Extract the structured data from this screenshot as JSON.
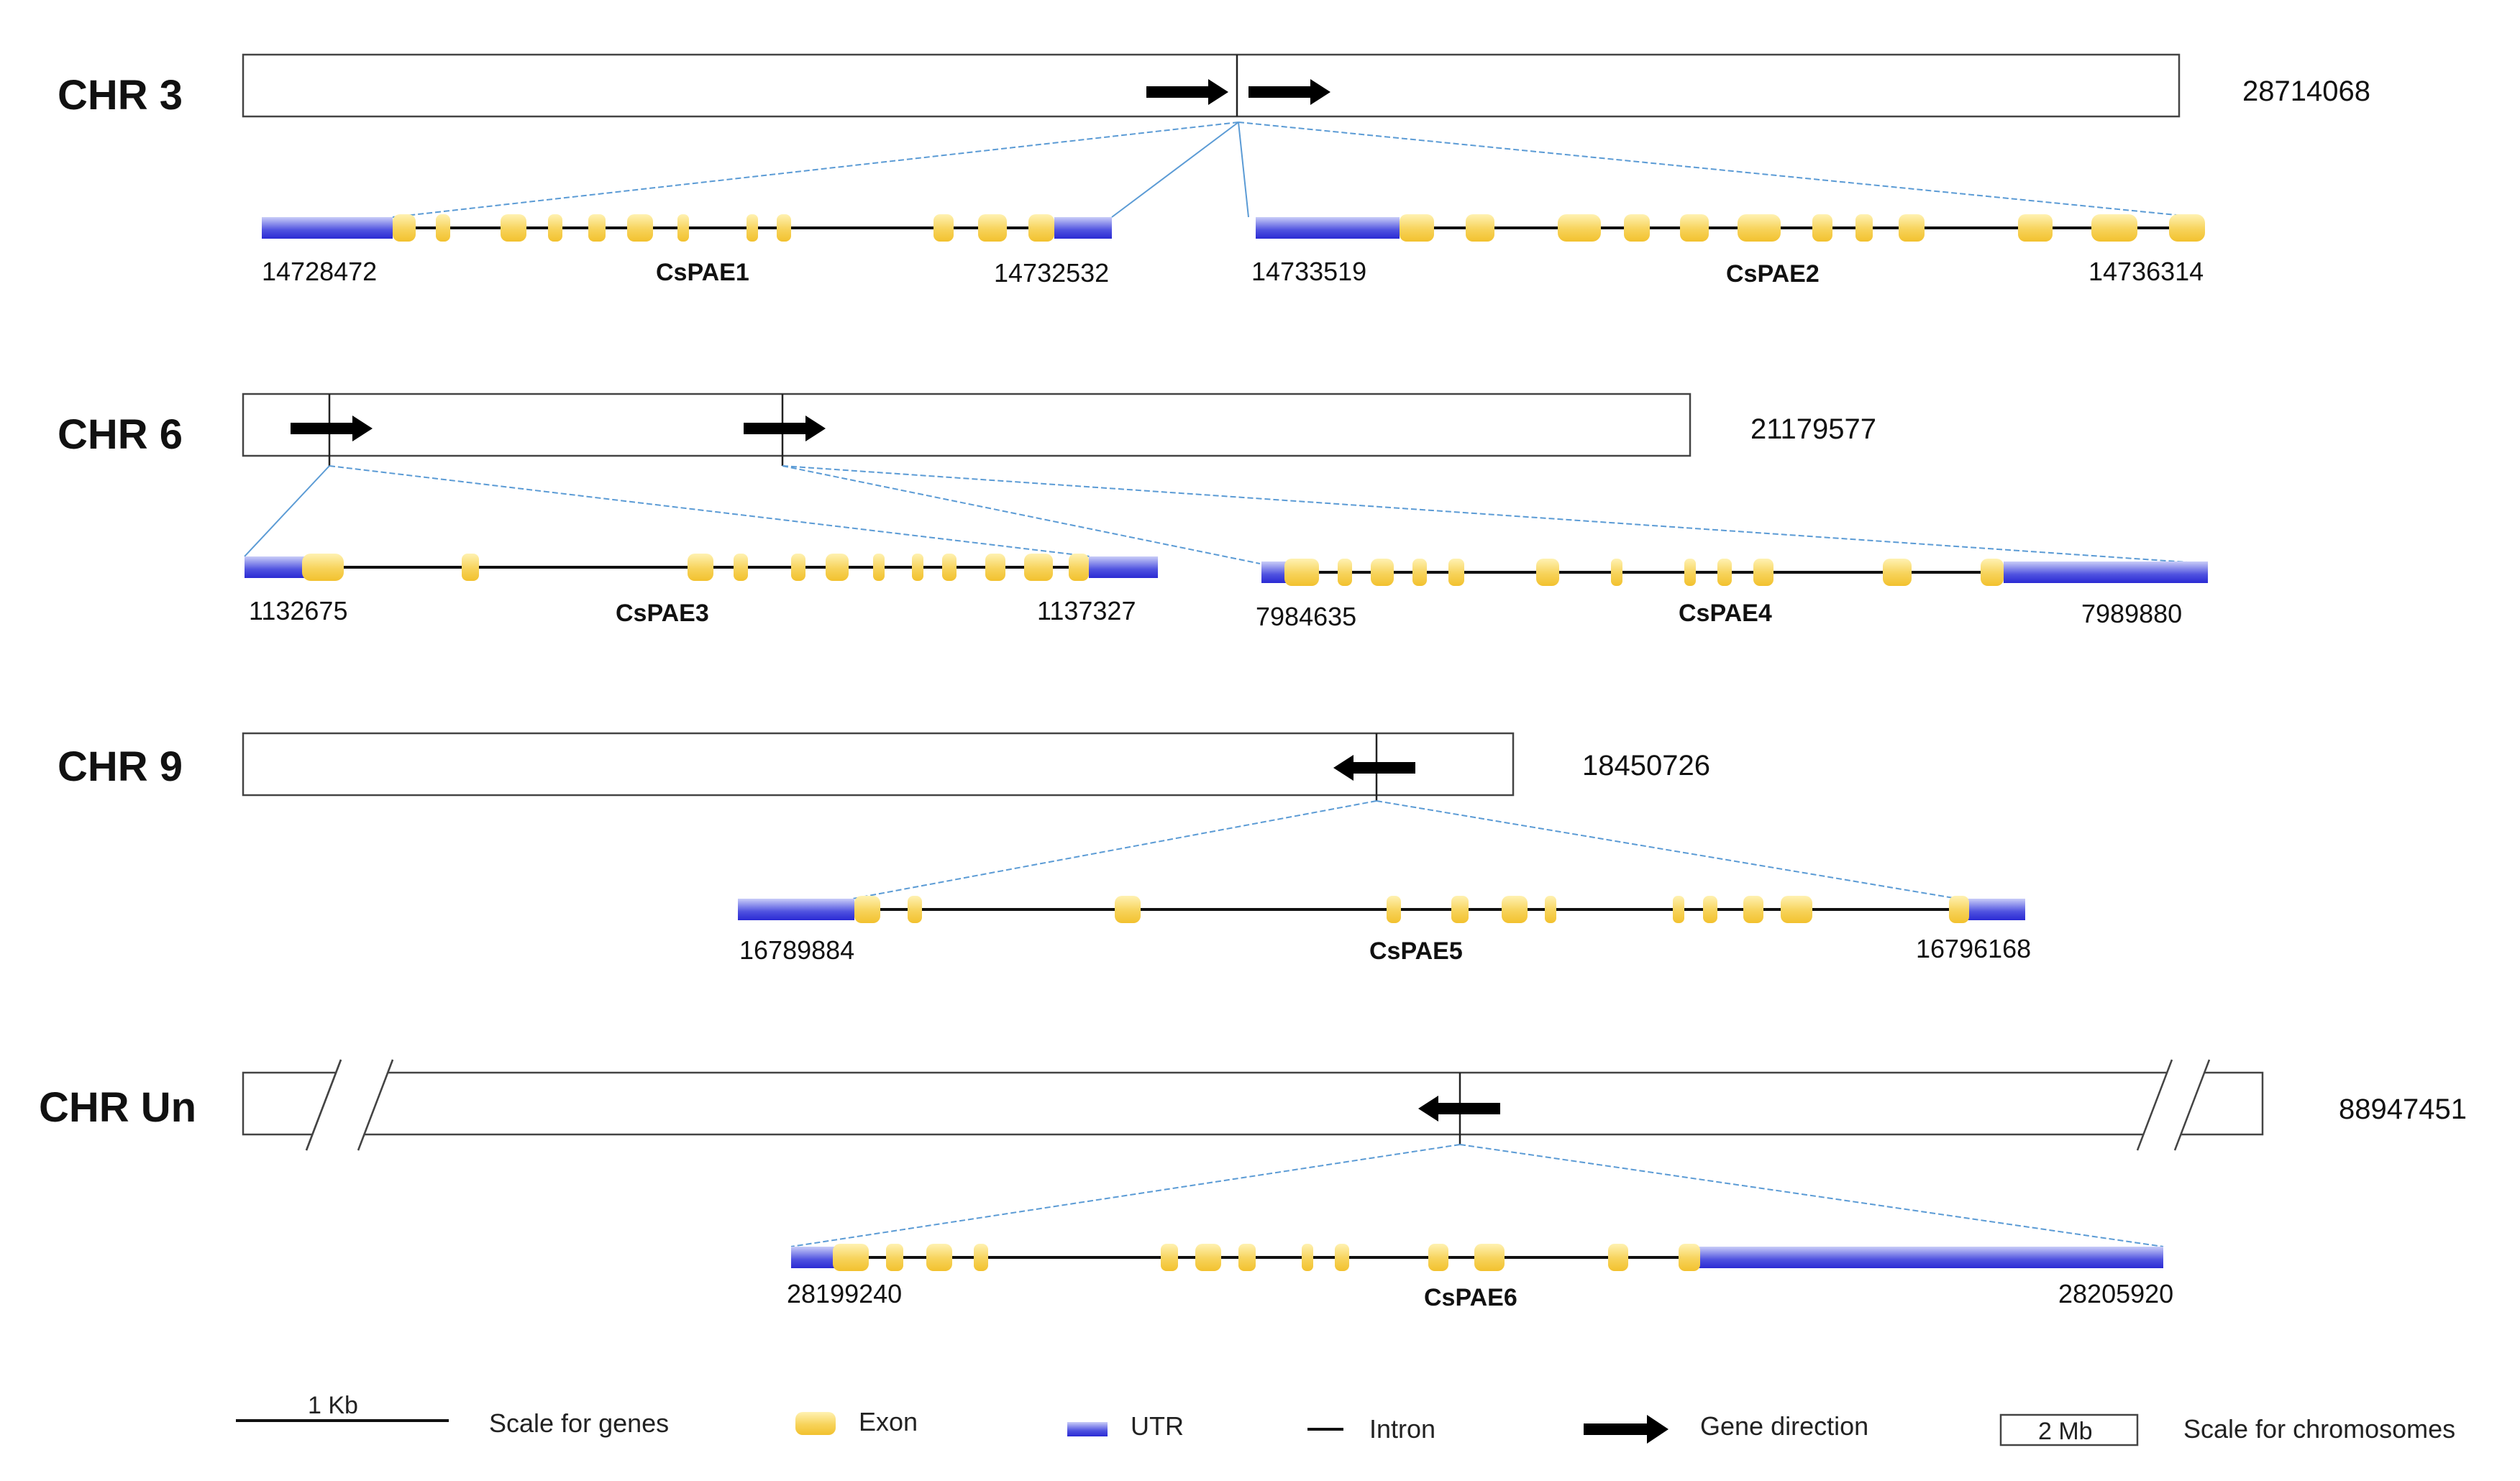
{
  "colors": {
    "exon_light": "#fff2b3",
    "exon_dark": "#f2c12e",
    "utr_light": "#c9cdf8",
    "utr_dark": "#2a2ad4",
    "connector": "#5b9bd5",
    "outline": "#444444",
    "intron": "#111111"
  },
  "chromosomes": [
    {
      "label": "CHR 3",
      "length": "28714068",
      "genes": [
        {
          "name": "CsPAE1",
          "start": "14728472",
          "end": "14732532",
          "direction": "right"
        },
        {
          "name": "CsPAE2",
          "start": "14733519",
          "end": "14736314",
          "direction": "right"
        }
      ]
    },
    {
      "label": "CHR 6",
      "length": "21179577",
      "genes": [
        {
          "name": "CsPAE3",
          "start": "1132675",
          "end": "1137327",
          "direction": "right"
        },
        {
          "name": "CsPAE4",
          "start": "7984635",
          "end": "7989880",
          "direction": "right"
        }
      ]
    },
    {
      "label": "CHR 9",
      "length": "18450726",
      "genes": [
        {
          "name": "CsPAE5",
          "start": "16789884",
          "end": "16796168",
          "direction": "left"
        }
      ]
    },
    {
      "label": "CHR Un",
      "length": "88947451",
      "genes": [
        {
          "name": "CsPAE6",
          "start": "28199240",
          "end": "28205920",
          "direction": "left"
        }
      ]
    }
  ],
  "legend": {
    "gene_scale_label": "1 Kb",
    "gene_scale_text": "Scale for genes",
    "exon": "Exon",
    "utr": "UTR",
    "intron": "Intron",
    "direction": "Gene direction",
    "chr_scale_label": "2 Mb",
    "chr_scale_text": "Scale for chromosomes"
  }
}
